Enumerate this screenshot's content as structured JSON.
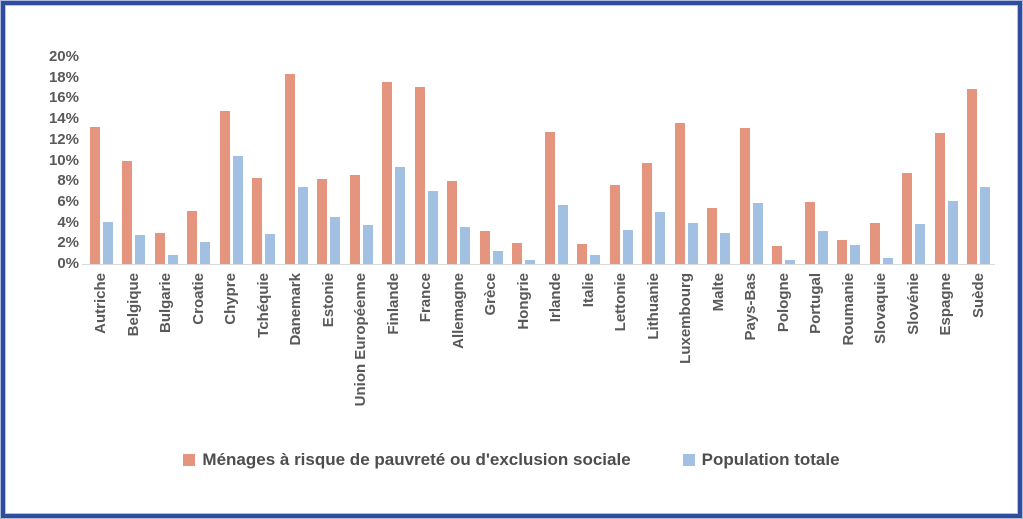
{
  "frame": {
    "border_color_navy": "#2e4d9c",
    "border_color_light": "#b4c0e4"
  },
  "chart_data": {
    "type": "bar",
    "title": "",
    "xlabel": "",
    "ylabel": "",
    "ylim": [
      0,
      20
    ],
    "ytick_step": 2,
    "ytick_labels": [
      "20%",
      "18%",
      "16%",
      "14%",
      "12%",
      "10%",
      "8%",
      "6%",
      "4%",
      "2%",
      "0%"
    ],
    "grid": false,
    "legend_position": "bottom-center",
    "categories": [
      "Autriche",
      "Belgique",
      "Bulgarie",
      "Croatie",
      "Chypre",
      "Tchéquie",
      "Danemark",
      "Estonie",
      "Union Européenne",
      "Finlande",
      "France",
      "Allemagne",
      "Grèce",
      "Hongrie",
      "Irlande",
      "Italie",
      "Lettonie",
      "Lithuanie",
      "Luxembourg",
      "Malte",
      "Pays-Bas",
      "Pologne",
      "Portugal",
      "Roumanie",
      "Slovaquie",
      "Slovénie",
      "Espagne",
      "Suède"
    ],
    "series": [
      {
        "name": "Ménages à risque de pauvreté ou d'exclusion sociale",
        "color": "#e5947e",
        "values": [
          13.2,
          10.0,
          3.0,
          5.1,
          14.8,
          8.3,
          18.4,
          8.2,
          8.6,
          17.6,
          17.1,
          8.0,
          3.2,
          2.0,
          12.8,
          1.9,
          7.6,
          9.8,
          13.6,
          5.4,
          13.1,
          1.7,
          6.0,
          2.3,
          4.0,
          8.8,
          12.7,
          16.9
        ]
      },
      {
        "name": "Population totale",
        "color": "#a2c0e2",
        "values": [
          4.1,
          2.8,
          0.9,
          2.1,
          10.4,
          2.9,
          7.4,
          4.5,
          3.8,
          9.4,
          7.1,
          3.6,
          1.3,
          0.4,
          5.7,
          0.9,
          3.3,
          5.0,
          4.0,
          3.0,
          5.9,
          0.4,
          3.2,
          1.8,
          0.6,
          3.9,
          6.1,
          7.4
        ]
      }
    ],
    "axis_line_color": "#d9d9d9",
    "text_color": "#595959"
  }
}
